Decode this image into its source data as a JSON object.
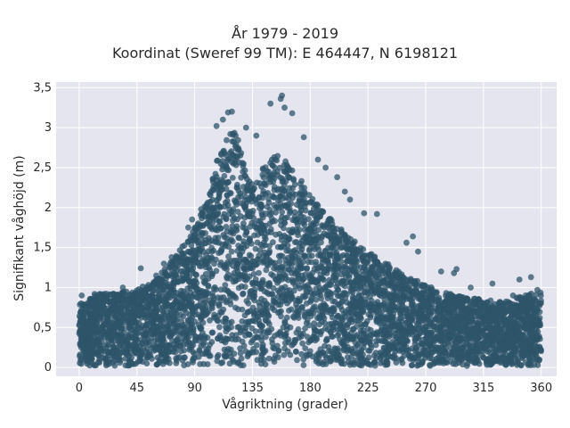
{
  "chart_data": {
    "type": "scatter",
    "title": "År 1979 - 2019",
    "subtitle": "Koordinat (Sweref 99 TM): E 464447, N 6198121",
    "xlabel": "Vågriktning (grader)",
    "ylabel": "Signifikant våghöjd (m)",
    "xlim": [
      -18,
      372
    ],
    "ylim": [
      -0.11,
      3.57
    ],
    "x_ticks": [
      0,
      45,
      90,
      135,
      180,
      225,
      270,
      315,
      360
    ],
    "x_tick_labels": [
      "0",
      "45",
      "90",
      "135",
      "180",
      "225",
      "270",
      "315",
      "360"
    ],
    "y_ticks": [
      0,
      0.5,
      1,
      1.5,
      2,
      2.5,
      3,
      3.5
    ],
    "y_tick_labels": [
      "0",
      "0,5",
      "1",
      "1,5",
      "2",
      "2,5",
      "3",
      "3,5"
    ],
    "grid": true,
    "marker_color": "#2e5469",
    "background_color": "#e5e5ef",
    "envelope": {
      "direction": [
        0,
        15,
        30,
        45,
        60,
        75,
        90,
        100,
        105,
        110,
        115,
        120,
        125,
        130,
        135,
        140,
        145,
        150,
        155,
        160,
        165,
        170,
        175,
        180,
        190,
        200,
        210,
        220,
        230,
        240,
        250,
        260,
        270,
        280,
        290,
        300,
        315,
        330,
        345,
        360
      ],
      "upper_height": [
        0.8,
        0.92,
        0.95,
        0.98,
        1.1,
        1.4,
        1.75,
        2.1,
        2.45,
        2.75,
        2.95,
        3.0,
        2.8,
        2.45,
        2.35,
        2.4,
        2.55,
        2.65,
        2.7,
        2.6,
        2.5,
        2.4,
        2.3,
        2.15,
        1.95,
        1.8,
        1.65,
        1.5,
        1.4,
        1.3,
        1.2,
        1.1,
        1.05,
        0.95,
        0.92,
        0.88,
        0.85,
        0.82,
        0.9,
        0.95
      ],
      "lower_height": 0.02
    },
    "outliers": [
      {
        "x": 158,
        "y": 3.4
      },
      {
        "x": 157,
        "y": 3.36
      },
      {
        "x": 149,
        "y": 3.3
      },
      {
        "x": 160,
        "y": 3.25
      },
      {
        "x": 166,
        "y": 3.18
      },
      {
        "x": 116,
        "y": 3.19
      },
      {
        "x": 112,
        "y": 3.1
      },
      {
        "x": 119,
        "y": 3.2
      },
      {
        "x": 107,
        "y": 3.02
      },
      {
        "x": 130,
        "y": 3.0
      },
      {
        "x": 138,
        "y": 2.9
      },
      {
        "x": 175,
        "y": 2.88
      },
      {
        "x": 186,
        "y": 2.6
      },
      {
        "x": 192,
        "y": 2.5
      },
      {
        "x": 201,
        "y": 2.38
      },
      {
        "x": 207,
        "y": 2.2
      },
      {
        "x": 211,
        "y": 2.1
      },
      {
        "x": 222,
        "y": 1.93
      },
      {
        "x": 232,
        "y": 1.92
      },
      {
        "x": 260,
        "y": 1.64
      },
      {
        "x": 255,
        "y": 1.56
      },
      {
        "x": 264,
        "y": 1.45
      },
      {
        "x": 282,
        "y": 1.2
      },
      {
        "x": 292,
        "y": 1.18
      },
      {
        "x": 294,
        "y": 1.23
      },
      {
        "x": 322,
        "y": 1.05
      },
      {
        "x": 343,
        "y": 1.1
      },
      {
        "x": 352,
        "y": 1.13
      },
      {
        "x": 357,
        "y": 0.97
      },
      {
        "x": 34,
        "y": 1.0
      },
      {
        "x": 48,
        "y": 1.24
      },
      {
        "x": 58,
        "y": 1.05
      },
      {
        "x": 60,
        "y": 1.15
      },
      {
        "x": 66,
        "y": 1.3
      },
      {
        "x": 72,
        "y": 1.38
      },
      {
        "x": 85,
        "y": 1.75
      },
      {
        "x": 88,
        "y": 1.85
      },
      {
        "x": 95,
        "y": 1.98
      },
      {
        "x": 2,
        "y": 0.9
      },
      {
        "x": 12,
        "y": 0.92
      },
      {
        "x": 338,
        "y": 0.9
      },
      {
        "x": 305,
        "y": 1.0
      }
    ]
  }
}
